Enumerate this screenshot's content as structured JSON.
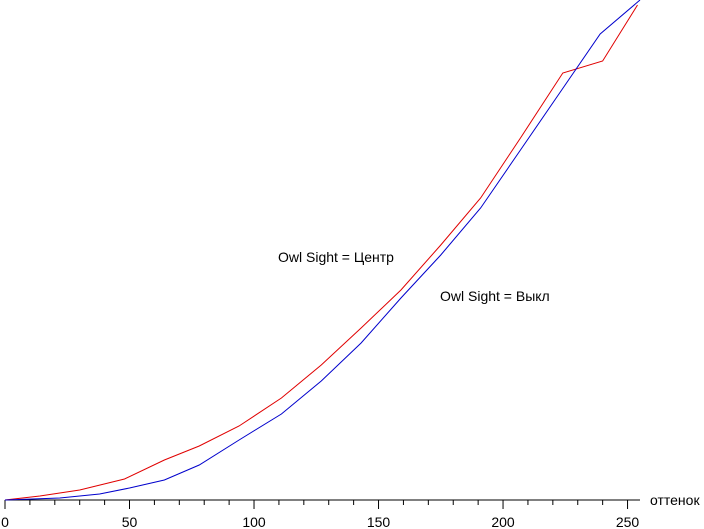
{
  "chart_data": {
    "type": "line",
    "x_label": "оттенок",
    "xlim": [
      0,
      255
    ],
    "ylim": [
      0,
      100
    ],
    "xticks": [
      0,
      50,
      100,
      150,
      200,
      250
    ],
    "xminorticks": [
      10,
      20,
      30,
      40,
      60,
      70,
      80,
      90,
      110,
      120,
      130,
      140,
      160,
      170,
      180,
      190,
      210,
      220,
      230,
      240
    ],
    "series": [
      {
        "name": "Owl Sight = Центр",
        "color": "#e00000",
        "x": [
          0,
          14,
          30,
          48,
          64,
          78,
          94,
          111,
          127,
          143,
          159,
          175,
          191,
          207,
          224,
          240,
          254
        ],
        "values": [
          0,
          0.8,
          2,
          4.2,
          8,
          10.8,
          14.8,
          20.4,
          27,
          34.4,
          42,
          51,
          60.4,
          72.4,
          85.4,
          87.8,
          99
        ]
      },
      {
        "name": "Owl Sight = Выкл",
        "color": "#0000cc",
        "x": [
          0,
          22,
          38,
          50,
          64,
          78,
          94,
          111,
          127,
          143,
          159,
          175,
          191,
          207,
          223,
          239,
          255
        ],
        "values": [
          0,
          0.4,
          1.2,
          2.4,
          4,
          7,
          12,
          17.2,
          23.8,
          31.4,
          40.4,
          49,
          58.4,
          70,
          81.6,
          93.2,
          100
        ]
      }
    ]
  }
}
